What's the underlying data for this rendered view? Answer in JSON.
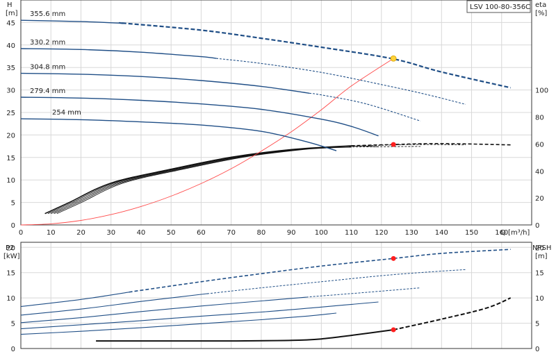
{
  "model_label": "LSV 100-80-356C",
  "colors": {
    "curve_blue": "#1f4e86",
    "system_red": "#ff4a4a",
    "eta_black": "#111111",
    "duty_red": "#ff1f1f",
    "duty_yellow": "#ffd23a"
  },
  "chart_data": [
    {
      "id": "qh",
      "type": "line",
      "xlabel": "Q [m³/h]",
      "ylabel_left_top": "H",
      "ylabel_left_unit": "[m]",
      "ylabel_right_top": "eta",
      "ylabel_right_unit": "[%]",
      "xlim": [
        0,
        170
      ],
      "ylim": [
        0,
        50
      ],
      "eta_lim": [
        0,
        166.7
      ],
      "xticks": [
        "0",
        "10",
        "20",
        "30",
        "40",
        "50",
        "60",
        "70",
        "80",
        "90",
        "100",
        "110",
        "120",
        "130",
        "140",
        "150",
        "160"
      ],
      "yticks": [
        "0",
        "5",
        "10",
        "15",
        "20",
        "25",
        "30",
        "35",
        "40",
        "45"
      ],
      "eta_ticks": [
        "0",
        "20",
        "40",
        "60",
        "80",
        "100"
      ],
      "grid": true,
      "head_curves": [
        {
          "label": "355.6 mm",
          "solid_until": 34,
          "points": [
            [
              0,
              45.5
            ],
            [
              20,
              45.2
            ],
            [
              35,
              44.8
            ],
            [
              60,
              43.3
            ],
            [
              80,
              41.5
            ],
            [
              100,
              39.5
            ],
            [
              124,
              36.9
            ],
            [
              140,
              34
            ],
            [
              163,
              30.5
            ]
          ]
        },
        {
          "label": "330.2 mm",
          "solid_until": 65,
          "points": [
            [
              0,
              39.2
            ],
            [
              20,
              39
            ],
            [
              40,
              38.4
            ],
            [
              60,
              37.4
            ],
            [
              80,
              35.9
            ],
            [
              100,
              33.9
            ],
            [
              120,
              31.2
            ],
            [
              135,
              29
            ],
            [
              148,
              26.8
            ]
          ]
        },
        {
          "label": "304.8 mm",
          "solid_until": 96,
          "points": [
            [
              0,
              33.7
            ],
            [
              20,
              33.5
            ],
            [
              40,
              33
            ],
            [
              60,
              32.1
            ],
            [
              80,
              30.8
            ],
            [
              100,
              28.9
            ],
            [
              115,
              26.9
            ],
            [
              133,
              23.1
            ]
          ]
        },
        {
          "label": "279.4 mm",
          "solid_until": 119,
          "points": [
            [
              0,
              28.4
            ],
            [
              20,
              28.2
            ],
            [
              40,
              27.7
            ],
            [
              60,
              26.9
            ],
            [
              80,
              25.7
            ],
            [
              100,
              23.5
            ],
            [
              110,
              21.9
            ],
            [
              119,
              19.8
            ]
          ]
        },
        {
          "label": "254 mm",
          "solid_until": 105,
          "points": [
            [
              0,
              23.6
            ],
            [
              20,
              23.4
            ],
            [
              40,
              22.9
            ],
            [
              60,
              22.2
            ],
            [
              80,
              20.8
            ],
            [
              95,
              18.5
            ],
            [
              105,
              16.5
            ]
          ]
        }
      ],
      "system_curve": [
        [
          0,
          0
        ],
        [
          10,
          0.25
        ],
        [
          20,
          1
        ],
        [
          30,
          2.3
        ],
        [
          40,
          4.1
        ],
        [
          50,
          6.4
        ],
        [
          60,
          9.2
        ],
        [
          70,
          12.5
        ],
        [
          80,
          16.4
        ],
        [
          90,
          20.7
        ],
        [
          100,
          25.6
        ],
        [
          110,
          30.9
        ],
        [
          124,
          37
        ]
      ],
      "duty_point_head": [
        124,
        37.0
      ],
      "eta_curves": [
        {
          "solid_until": 110,
          "points": [
            [
              8,
              8.4
            ],
            [
              16,
              16.5
            ],
            [
              30,
              31
            ],
            [
              50,
              41.3
            ],
            [
              70,
              50.2
            ],
            [
              90,
              55.9
            ],
            [
              110,
              58.7
            ],
            [
              124,
              59.6
            ],
            [
              140,
              60.3
            ],
            [
              163,
              59.3
            ]
          ]
        },
        {
          "solid_until": 110,
          "points": [
            [
              9,
              8.4
            ],
            [
              17,
              16.5
            ],
            [
              31,
              31
            ],
            [
              51,
              41.3
            ],
            [
              71,
              50.2
            ],
            [
              91,
              55.9
            ],
            [
              111,
              58.4
            ],
            [
              130,
              59.6
            ],
            [
              148,
              59.3
            ]
          ]
        },
        {
          "solid_until": 110,
          "points": [
            [
              10,
              8.4
            ],
            [
              18,
              16.5
            ],
            [
              32,
              31
            ],
            [
              52,
              41.3
            ],
            [
              72,
              50.2
            ],
            [
              92,
              55.9
            ],
            [
              111,
              57.8
            ],
            [
              133,
              58.2
            ]
          ]
        },
        {
          "solid_until": 118,
          "points": [
            [
              11,
              8.4
            ],
            [
              19,
              16.5
            ],
            [
              33,
              31
            ],
            [
              53,
              41.3
            ],
            [
              73,
              50.2
            ],
            [
              93,
              55.9
            ],
            [
              110,
              58.4
            ],
            [
              119,
              58
            ]
          ]
        },
        {
          "solid_until": 105,
          "points": [
            [
              12,
              8.4
            ],
            [
              20,
              16.5
            ],
            [
              34,
              31
            ],
            [
              54,
              41.3
            ],
            [
              74,
              50.2
            ],
            [
              94,
              55.9
            ],
            [
              105,
              57.4
            ]
          ]
        }
      ],
      "duty_point_eta": [
        124,
        59.6
      ]
    },
    {
      "id": "p2npsh",
      "type": "line",
      "xlim": [
        0,
        170
      ],
      "ylabel_left_top": "P2",
      "ylabel_left_unit": "[kW]",
      "ylabel_right_top": "NPSH",
      "ylabel_right_unit": "[m]",
      "ylim": [
        0,
        21
      ],
      "yticks": [
        "0",
        "5",
        "10",
        "15",
        "20"
      ],
      "npsh_ticks": [
        "0",
        "5",
        "10",
        "15",
        "20"
      ],
      "grid": true,
      "power_curves": [
        {
          "solid_until": 36,
          "points": [
            [
              0,
              8.3
            ],
            [
              20,
              9.7
            ],
            [
              40,
              11.5
            ],
            [
              60,
              13.2
            ],
            [
              80,
              14.8
            ],
            [
              100,
              16.3
            ],
            [
              124,
              17.8
            ],
            [
              140,
              18.8
            ],
            [
              163,
              19.6
            ]
          ]
        },
        {
          "solid_until": 62,
          "points": [
            [
              0,
              6.6
            ],
            [
              20,
              7.8
            ],
            [
              40,
              9.3
            ],
            [
              60,
              10.7
            ],
            [
              80,
              12
            ],
            [
              100,
              13.2
            ],
            [
              120,
              14.4
            ],
            [
              135,
              15.1
            ],
            [
              148,
              15.6
            ]
          ]
        },
        {
          "solid_until": 95,
          "points": [
            [
              0,
              5.1
            ],
            [
              20,
              6.1
            ],
            [
              40,
              7.3
            ],
            [
              60,
              8.4
            ],
            [
              80,
              9.4
            ],
            [
              100,
              10.4
            ],
            [
              115,
              11.1
            ],
            [
              133,
              12
            ]
          ]
        },
        {
          "solid_until": 119,
          "points": [
            [
              0,
              3.9
            ],
            [
              20,
              4.7
            ],
            [
              40,
              5.5
            ],
            [
              60,
              6.4
            ],
            [
              80,
              7.2
            ],
            [
              100,
              8.2
            ],
            [
              119,
              9.2
            ]
          ]
        },
        {
          "solid_until": 105,
          "points": [
            [
              0,
              2.8
            ],
            [
              20,
              3.4
            ],
            [
              40,
              4.1
            ],
            [
              60,
              4.9
            ],
            [
              80,
              5.7
            ],
            [
              95,
              6.4
            ],
            [
              105,
              7
            ]
          ]
        }
      ],
      "duty_point_power": [
        124,
        17.8
      ],
      "npsh_curve": {
        "solid_until": 124,
        "points": [
          [
            25,
            1.5
          ],
          [
            50,
            1.5
          ],
          [
            70,
            1.5
          ],
          [
            90,
            1.6
          ],
          [
            100,
            1.9
          ],
          [
            110,
            2.6
          ],
          [
            124,
            3.7
          ],
          [
            140,
            5.8
          ],
          [
            155,
            8
          ],
          [
            163,
            10
          ]
        ]
      },
      "duty_point_npsh": [
        124,
        3.7
      ]
    }
  ]
}
